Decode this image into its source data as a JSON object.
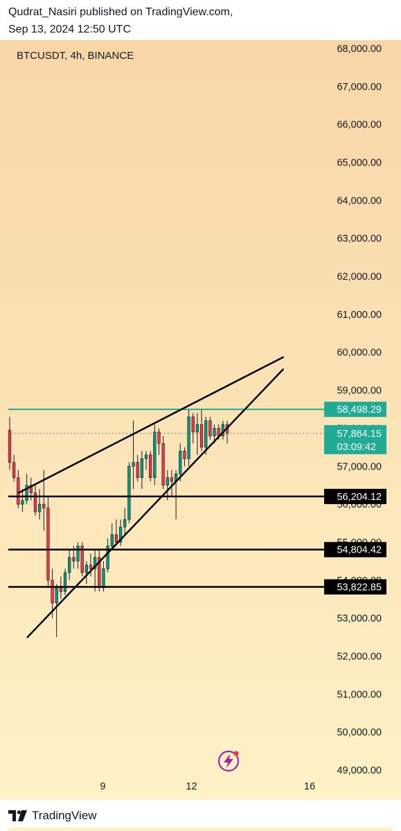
{
  "header": {
    "publisher_line": "Qudrat_Nasiri published on TradingView.com,",
    "date_line": "Sep 13, 2024 12:50 UTC"
  },
  "chart_data": {
    "type": "candlestick",
    "title": "BTCUSDT, 4h, BINANCE",
    "ylim": [
      49000,
      68000
    ],
    "y_ticks": [
      "68,000.00",
      "67,000.00",
      "66,000.00",
      "65,000.00",
      "64,000.00",
      "63,000.00",
      "62,000.00",
      "61,000.00",
      "60,000.00",
      "59,000.00",
      "58,000.00",
      "57,000.00",
      "56,000.00",
      "55,000.00",
      "54,000.00",
      "53,000.00",
      "52,000.00",
      "51,000.00",
      "50,000.00",
      "49,000.00"
    ],
    "x_ticks": [
      {
        "label": "9",
        "day": 9
      },
      {
        "label": "12",
        "day": 12
      },
      {
        "label": "16",
        "day": 16
      }
    ],
    "x_start_day": 5.8,
    "x_end_day": 16.35,
    "candles": [
      {
        "o": 57950,
        "h": 58300,
        "l": 56900,
        "c": 57100
      },
      {
        "o": 57100,
        "h": 57300,
        "l": 56600,
        "c": 56700
      },
      {
        "o": 56700,
        "h": 56900,
        "l": 55900,
        "c": 56000
      },
      {
        "o": 56000,
        "h": 56400,
        "l": 55800,
        "c": 56100
      },
      {
        "o": 56100,
        "h": 56800,
        "l": 56000,
        "c": 56500
      },
      {
        "o": 56500,
        "h": 56700,
        "l": 56100,
        "c": 56300
      },
      {
        "o": 56300,
        "h": 56500,
        "l": 55700,
        "c": 55800
      },
      {
        "o": 55800,
        "h": 56400,
        "l": 55600,
        "c": 56000
      },
      {
        "o": 56000,
        "h": 56900,
        "l": 55300,
        "c": 55900
      },
      {
        "o": 55900,
        "h": 56200,
        "l": 53800,
        "c": 54000
      },
      {
        "o": 54000,
        "h": 54300,
        "l": 53000,
        "c": 53400
      },
      {
        "o": 53400,
        "h": 53900,
        "l": 52500,
        "c": 53800
      },
      {
        "o": 53800,
        "h": 54100,
        "l": 53500,
        "c": 53700
      },
      {
        "o": 53700,
        "h": 54300,
        "l": 53600,
        "c": 54200
      },
      {
        "o": 54200,
        "h": 54800,
        "l": 54000,
        "c": 54600
      },
      {
        "o": 54600,
        "h": 54900,
        "l": 54300,
        "c": 54500
      },
      {
        "o": 54500,
        "h": 55000,
        "l": 54300,
        "c": 54900
      },
      {
        "o": 54900,
        "h": 55000,
        "l": 54100,
        "c": 54200
      },
      {
        "o": 54200,
        "h": 54500,
        "l": 53900,
        "c": 54400
      },
      {
        "o": 54400,
        "h": 54700,
        "l": 54100,
        "c": 54300
      },
      {
        "o": 54300,
        "h": 54800,
        "l": 53700,
        "c": 54600
      },
      {
        "o": 54600,
        "h": 54800,
        "l": 53700,
        "c": 53800
      },
      {
        "o": 53800,
        "h": 54500,
        "l": 53700,
        "c": 54300
      },
      {
        "o": 54300,
        "h": 55100,
        "l": 54200,
        "c": 54900
      },
      {
        "o": 54900,
        "h": 55500,
        "l": 54800,
        "c": 55200
      },
      {
        "o": 55200,
        "h": 55600,
        "l": 54900,
        "c": 55000
      },
      {
        "o": 55000,
        "h": 55600,
        "l": 54900,
        "c": 55400
      },
      {
        "o": 55400,
        "h": 55900,
        "l": 55200,
        "c": 55600
      },
      {
        "o": 55600,
        "h": 57100,
        "l": 55500,
        "c": 57000
      },
      {
        "o": 57000,
        "h": 58200,
        "l": 56400,
        "c": 57100
      },
      {
        "o": 57100,
        "h": 57300,
        "l": 56600,
        "c": 56700
      },
      {
        "o": 56700,
        "h": 57400,
        "l": 56400,
        "c": 57200
      },
      {
        "o": 57200,
        "h": 57400,
        "l": 56900,
        "c": 57300
      },
      {
        "o": 57300,
        "h": 57400,
        "l": 56600,
        "c": 56700
      },
      {
        "o": 56700,
        "h": 58100,
        "l": 56500,
        "c": 57900
      },
      {
        "o": 57900,
        "h": 58000,
        "l": 57300,
        "c": 57600
      },
      {
        "o": 57600,
        "h": 57800,
        "l": 56400,
        "c": 56500
      },
      {
        "o": 56500,
        "h": 56900,
        "l": 56100,
        "c": 56700
      },
      {
        "o": 56700,
        "h": 56900,
        "l": 56200,
        "c": 56600
      },
      {
        "o": 56600,
        "h": 56900,
        "l": 55600,
        "c": 56800
      },
      {
        "o": 56800,
        "h": 57600,
        "l": 56600,
        "c": 57400
      },
      {
        "o": 57400,
        "h": 57500,
        "l": 57000,
        "c": 57200
      },
      {
        "o": 57200,
        "h": 58500,
        "l": 57000,
        "c": 58300
      },
      {
        "o": 58300,
        "h": 58400,
        "l": 57600,
        "c": 57900
      },
      {
        "o": 57900,
        "h": 58400,
        "l": 57300,
        "c": 58100
      },
      {
        "o": 58100,
        "h": 58500,
        "l": 57400,
        "c": 57500
      },
      {
        "o": 57500,
        "h": 58300,
        "l": 57300,
        "c": 58200
      },
      {
        "o": 58200,
        "h": 58300,
        "l": 57700,
        "c": 57800
      },
      {
        "o": 57800,
        "h": 58100,
        "l": 57600,
        "c": 58000
      },
      {
        "o": 58000,
        "h": 58100,
        "l": 57700,
        "c": 57800
      },
      {
        "o": 57800,
        "h": 58200,
        "l": 57700,
        "c": 58100
      },
      {
        "o": 58100,
        "h": 58200,
        "l": 57600,
        "c": 57860
      }
    ],
    "trendlines": [
      {
        "name": "wedge-upper",
        "from": {
          "day": 6.15,
          "price": 56300
        },
        "to": {
          "day": 15.1,
          "price": 59870
        }
      },
      {
        "name": "wedge-lower",
        "from": {
          "day": 6.45,
          "price": 52500
        },
        "to": {
          "day": 15.1,
          "price": 59550
        }
      }
    ],
    "horizontal_levels": [
      {
        "price": 58498.29,
        "label": "58,498.29",
        "style": "green"
      },
      {
        "price": 56204.12,
        "label": "56,204.12",
        "style": "black"
      },
      {
        "price": 54804.42,
        "label": "54,804.42",
        "style": "black"
      },
      {
        "price": 53822.85,
        "label": "53,822.85",
        "style": "black"
      }
    ],
    "last_price": {
      "price": 57864.15,
      "label": "57,864.15",
      "countdown": "03:09:42"
    },
    "colors": {
      "up": "#089981",
      "down": "#f23645",
      "level_green": "#22ab94",
      "level_black": "#000000",
      "price_tag": "#22ab94"
    }
  },
  "footer": {
    "brand": "TradingView"
  }
}
